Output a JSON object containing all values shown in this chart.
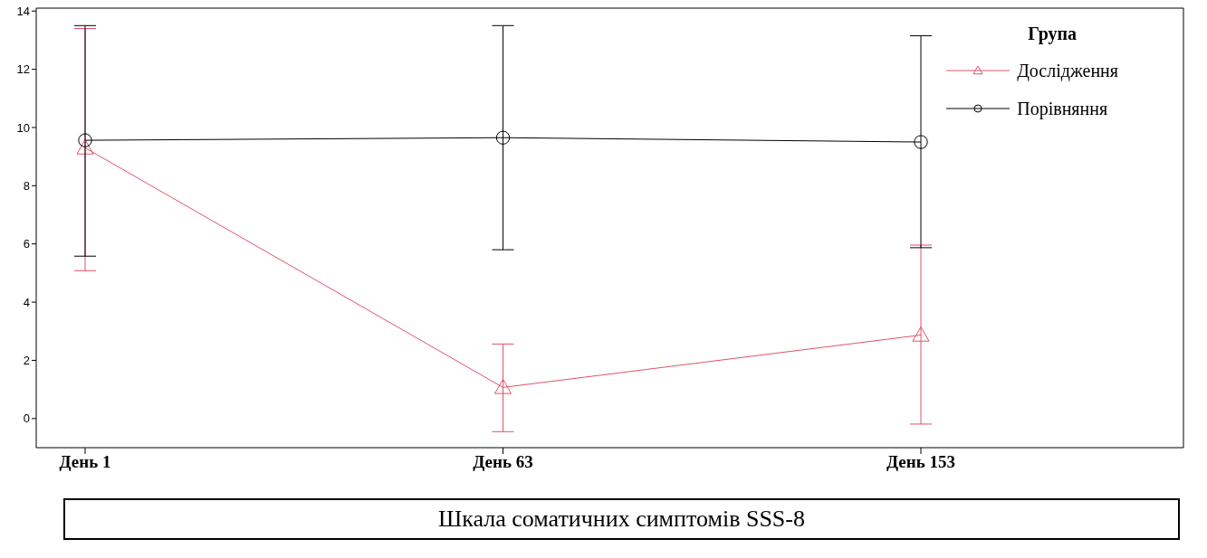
{
  "chart_data": {
    "type": "line",
    "categories": [
      "День 1",
      "День 63",
      "День 153"
    ],
    "series": [
      {
        "name": "Дослідження",
        "color": "#df536b",
        "marker": "triangle",
        "values": [
          9.3,
          1.07,
          2.87
        ],
        "errors": [
          [
            5.08,
            13.4
          ],
          [
            -0.45,
            2.56
          ],
          [
            -0.19,
            5.96
          ]
        ]
      },
      {
        "name": "Порівняння",
        "color": "#000000",
        "marker": "circle",
        "values": [
          9.56,
          9.65,
          9.5
        ],
        "errors": [
          [
            5.58,
            13.5
          ],
          [
            5.8,
            13.5
          ],
          [
            5.87,
            13.15
          ]
        ]
      }
    ],
    "ylim": [
      -1,
      14.1
    ],
    "yticks": [
      0,
      2,
      4,
      6,
      8,
      10,
      12,
      14
    ],
    "grid": false,
    "legend": "top right",
    "legend_title": "Група",
    "annotations": [
      "Шкала соматичних симптомів SSS-8"
    ]
  }
}
